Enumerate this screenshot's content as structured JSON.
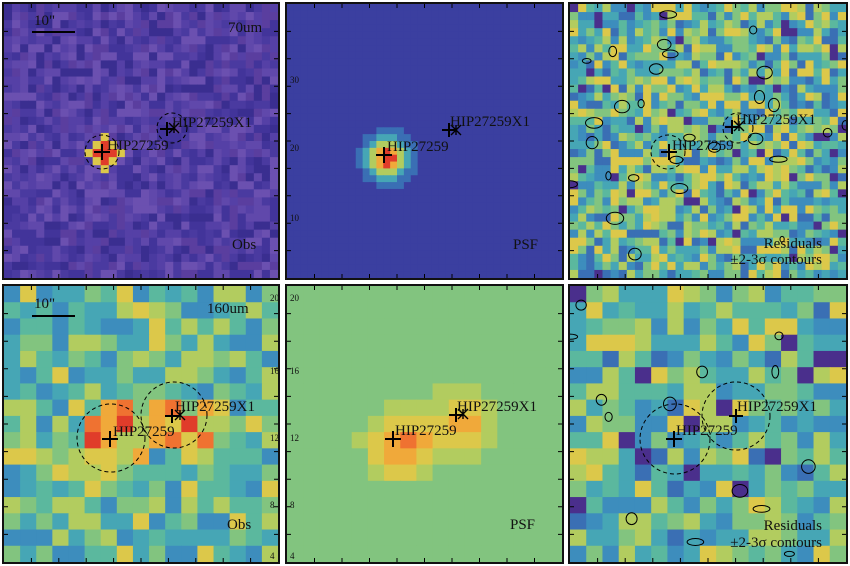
{
  "colors": {
    "frame": "#111111",
    "marker": "#000000"
  },
  "rows": [
    {
      "band": "70um",
      "scalebar": "10\"",
      "panels": [
        {
          "kind": "obs",
          "label": "Obs",
          "cmap_bg": "#5b3f9e",
          "sources": [
            {
              "name": "HIP27259"
            },
            {
              "name": "HIP27259X1"
            }
          ],
          "ticks": []
        },
        {
          "kind": "psf",
          "label": "PSF",
          "cmap_bg": "#3b3fa0",
          "sources": [
            {
              "name": "HIP27259"
            },
            {
              "name": "HIP27259X1"
            }
          ],
          "ticks": [
            "30",
            "20",
            "10"
          ]
        },
        {
          "kind": "res",
          "label": "Residuals",
          "label2": "±2-3σ contours",
          "sources": [
            {
              "name": "HIP27259"
            },
            {
              "name": "HIP27259X1"
            }
          ],
          "ticks": []
        }
      ]
    },
    {
      "band": "160um",
      "scalebar": "10\"",
      "panels": [
        {
          "kind": "obs",
          "label": "Obs",
          "sources": [
            {
              "name": "HIP27259"
            },
            {
              "name": "HIP27259X1"
            }
          ],
          "ticks": [
            "20",
            "16",
            "12",
            "8",
            "4"
          ]
        },
        {
          "kind": "psf",
          "label": "PSF",
          "cmap_bg": "#76be8a",
          "sources": [
            {
              "name": "HIP27259"
            },
            {
              "name": "HIP27259X1"
            }
          ],
          "ticks": [
            "20",
            "16",
            "12",
            "8",
            "4"
          ]
        },
        {
          "kind": "res",
          "label": "Residuals",
          "label2": "±2-3σ contours",
          "sources": [
            {
              "name": "HIP27259"
            },
            {
              "name": "HIP27259X1"
            }
          ],
          "ticks": []
        }
      ]
    }
  ]
}
